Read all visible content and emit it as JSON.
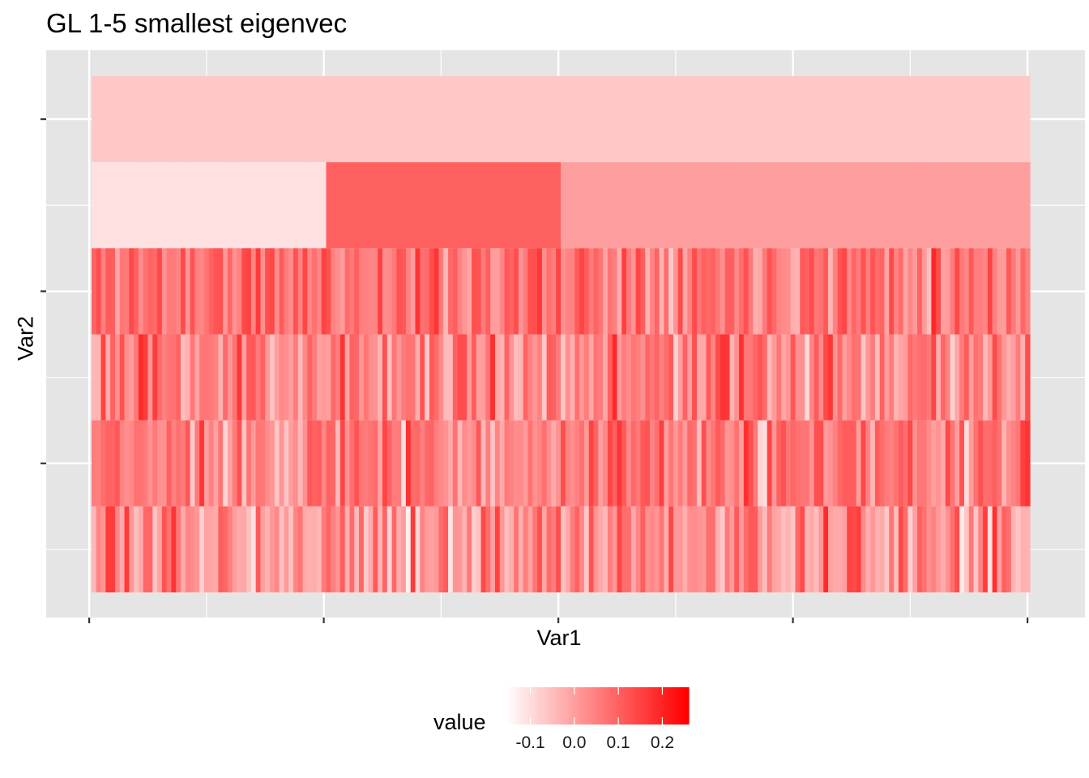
{
  "chart_data": {
    "type": "heatmap",
    "title": "GL 1-5 smallest eigenvec",
    "xlabel": "Var1",
    "ylabel": "Var2",
    "x_tick_labels": [],
    "y_tick_labels": [],
    "n_columns": 200,
    "rows": [
      {
        "pattern": "constant",
        "value": -0.07
      },
      {
        "pattern": "blocks",
        "blocks": [
          {
            "from": 0,
            "to": 50,
            "value": -0.11
          },
          {
            "from": 50,
            "to": 100,
            "value": 0.1
          },
          {
            "from": 100,
            "to": 200,
            "value": 0.0
          }
        ]
      },
      {
        "pattern": "noisy",
        "mean": 0.08,
        "spread": 0.1,
        "seed": 11
      },
      {
        "pattern": "noisy",
        "mean": 0.05,
        "spread": 0.12,
        "seed": 23
      },
      {
        "pattern": "noisy",
        "mean": 0.05,
        "spread": 0.11,
        "seed": 37
      },
      {
        "pattern": "noisy",
        "mean": 0.03,
        "spread": 0.12,
        "seed": 53
      }
    ],
    "color_scale": {
      "low": "#ffffff",
      "high": "#ff0000",
      "min": -0.16,
      "max": 0.26
    },
    "legend": {
      "title": "value",
      "position": "bottom",
      "breaks": [
        -0.1,
        0.0,
        0.1,
        0.2
      ],
      "labels": [
        "-0.1",
        "0.0",
        "0.1",
        "0.2"
      ]
    },
    "grid": true,
    "panel_background": "#e5e5e5",
    "grid_color": "#ffffff"
  }
}
